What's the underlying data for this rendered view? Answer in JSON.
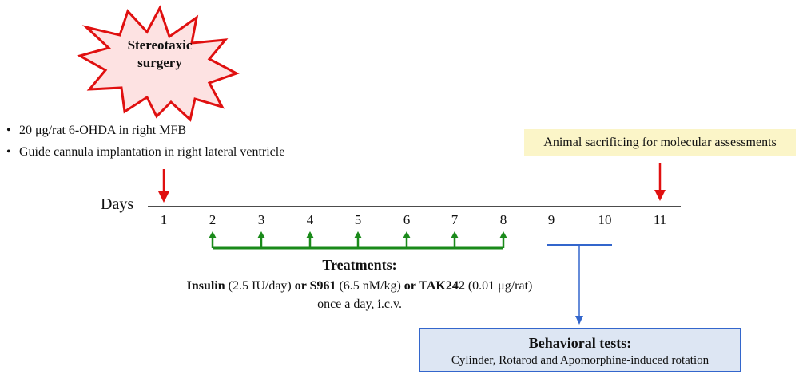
{
  "surgery": {
    "label_line1": "Stereotaxic",
    "label_line2": "surgery"
  },
  "surgery_notes": [
    "20 μg/rat 6-OHDA in right MFB",
    "Guide cannula implantation in right lateral ventricle"
  ],
  "sacrifice_label": "Animal sacrificing for molecular assessments",
  "timeline": {
    "axis_label": "Days",
    "days": [
      "1",
      "2",
      "3",
      "4",
      "5",
      "6",
      "7",
      "8",
      "9",
      "10",
      "11"
    ]
  },
  "treatments": {
    "title": "Treatments:",
    "drug1": "Insulin",
    "dose1": " (2.5 IU/day) ",
    "or1": "or ",
    "drug2": "S961",
    "dose2": " (6.5 nM/kg) ",
    "or2": "or ",
    "drug3": "TAK242",
    "dose3": " (0.01 μg/rat)",
    "schedule": "once a day, i.c.v."
  },
  "behavioral": {
    "title": "Behavioral tests:",
    "tests": "Cylinder, Rotarod and Apomorphine-induced rotation"
  },
  "colors": {
    "star_fill": "#fde2e2",
    "star_stroke": "#e01010",
    "red_arrow": "#e01010",
    "green_arrow": "#1a8a1a",
    "blue": "#3366cc",
    "sacrifice_bg": "#fbf5c8",
    "behavioral_bg": "#dde6f3"
  }
}
